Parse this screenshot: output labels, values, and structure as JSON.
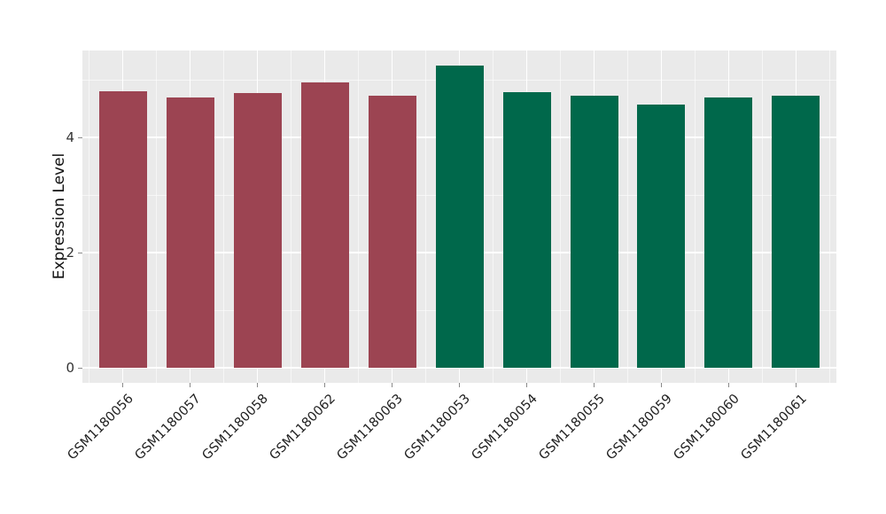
{
  "chart_data": {
    "type": "bar",
    "title": "",
    "xlabel": "",
    "ylabel": "Expression Level",
    "categories": [
      "GSM1180056",
      "GSM1180057",
      "GSM1180058",
      "GSM1180062",
      "GSM1180063",
      "GSM1180053",
      "GSM1180054",
      "GSM1180055",
      "GSM1180059",
      "GSM1180060",
      "GSM1180061"
    ],
    "values": [
      4.8,
      4.7,
      4.77,
      4.96,
      4.73,
      5.25,
      4.78,
      4.72,
      4.57,
      4.69,
      4.73
    ],
    "groups": [
      "group1",
      "group1",
      "group1",
      "group1",
      "group1",
      "group2",
      "group2",
      "group2",
      "group2",
      "group2",
      "group2"
    ],
    "group_colors": {
      "group1": "#9C4452",
      "group2": "#00684B"
    },
    "yticks": [
      0,
      2,
      4
    ],
    "ytick_labels": [
      "0",
      "2",
      "4"
    ],
    "yticks_minor": [
      1,
      3,
      5
    ],
    "ylim": [
      -0.26,
      5.51
    ],
    "xtick_rotation": 45,
    "legend": false,
    "grid": true,
    "panel_bg": "#EAEAEA",
    "grid_color": "#FFFFFF"
  }
}
